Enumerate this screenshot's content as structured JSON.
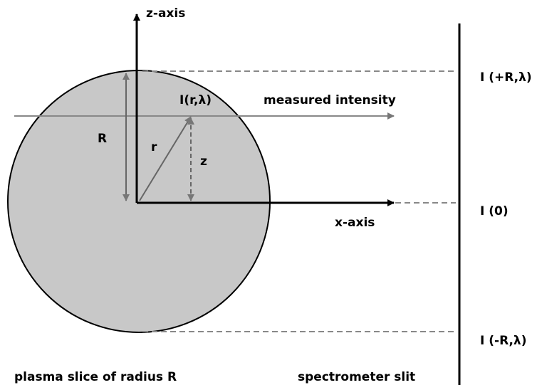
{
  "labels": {
    "z_axis": "z-axis",
    "x_axis": "x-axis",
    "intensity_point": "I(r,λ)",
    "measured": "measured intensity",
    "radius": "R",
    "r": "r",
    "z": "z",
    "top": "I (+R,λ)",
    "center": "I (0)",
    "bottom": "I (-R,λ)",
    "plasma": "plasma slice of radius R",
    "slit": "spectrometer slit"
  }
}
